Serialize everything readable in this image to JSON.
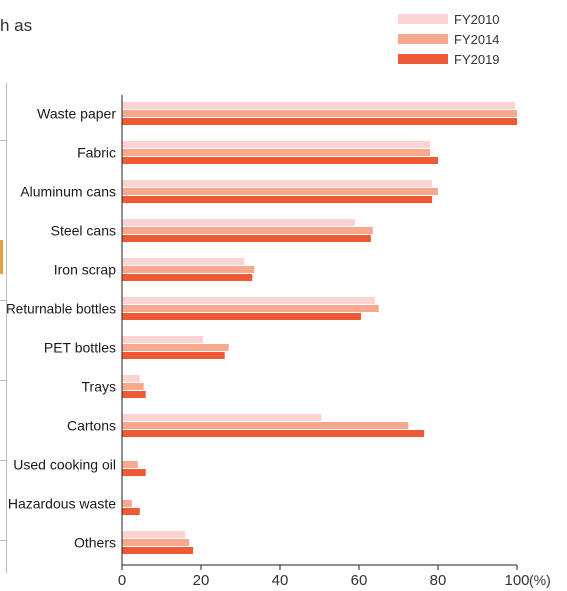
{
  "page": {
    "fragment_text": "h as"
  },
  "chart_data": {
    "type": "bar",
    "orientation": "horizontal",
    "categories": [
      "Waste paper",
      "Fabric",
      "Aluminum cans",
      "Steel cans",
      "Iron scrap",
      "Returnable bottles",
      "PET bottles",
      "Trays",
      "Cartons",
      "Used cooking oil",
      "Hazardous waste",
      "Others"
    ],
    "series": [
      {
        "name": "FY2010",
        "color": "#fbd3d3",
        "values": [
          99.5,
          78,
          78.5,
          59,
          31,
          64,
          20.5,
          4.5,
          50.5,
          null,
          null,
          16
        ]
      },
      {
        "name": "FY2014",
        "color": "#f6a98c",
        "values": [
          100,
          78,
          80,
          63.5,
          33.5,
          65,
          27,
          5.5,
          72.5,
          4,
          2.5,
          17
        ]
      },
      {
        "name": "FY2019",
        "color": "#ee5a36",
        "values": [
          100,
          80,
          78.5,
          63,
          33,
          60.5,
          26,
          6,
          76.5,
          6,
          4.5,
          18
        ]
      }
    ],
    "xlim": [
      0,
      100
    ],
    "xticks": [
      0,
      20,
      40,
      60,
      80,
      100
    ],
    "unit": "(%)",
    "legend_position": "top-right",
    "grid": false
  }
}
